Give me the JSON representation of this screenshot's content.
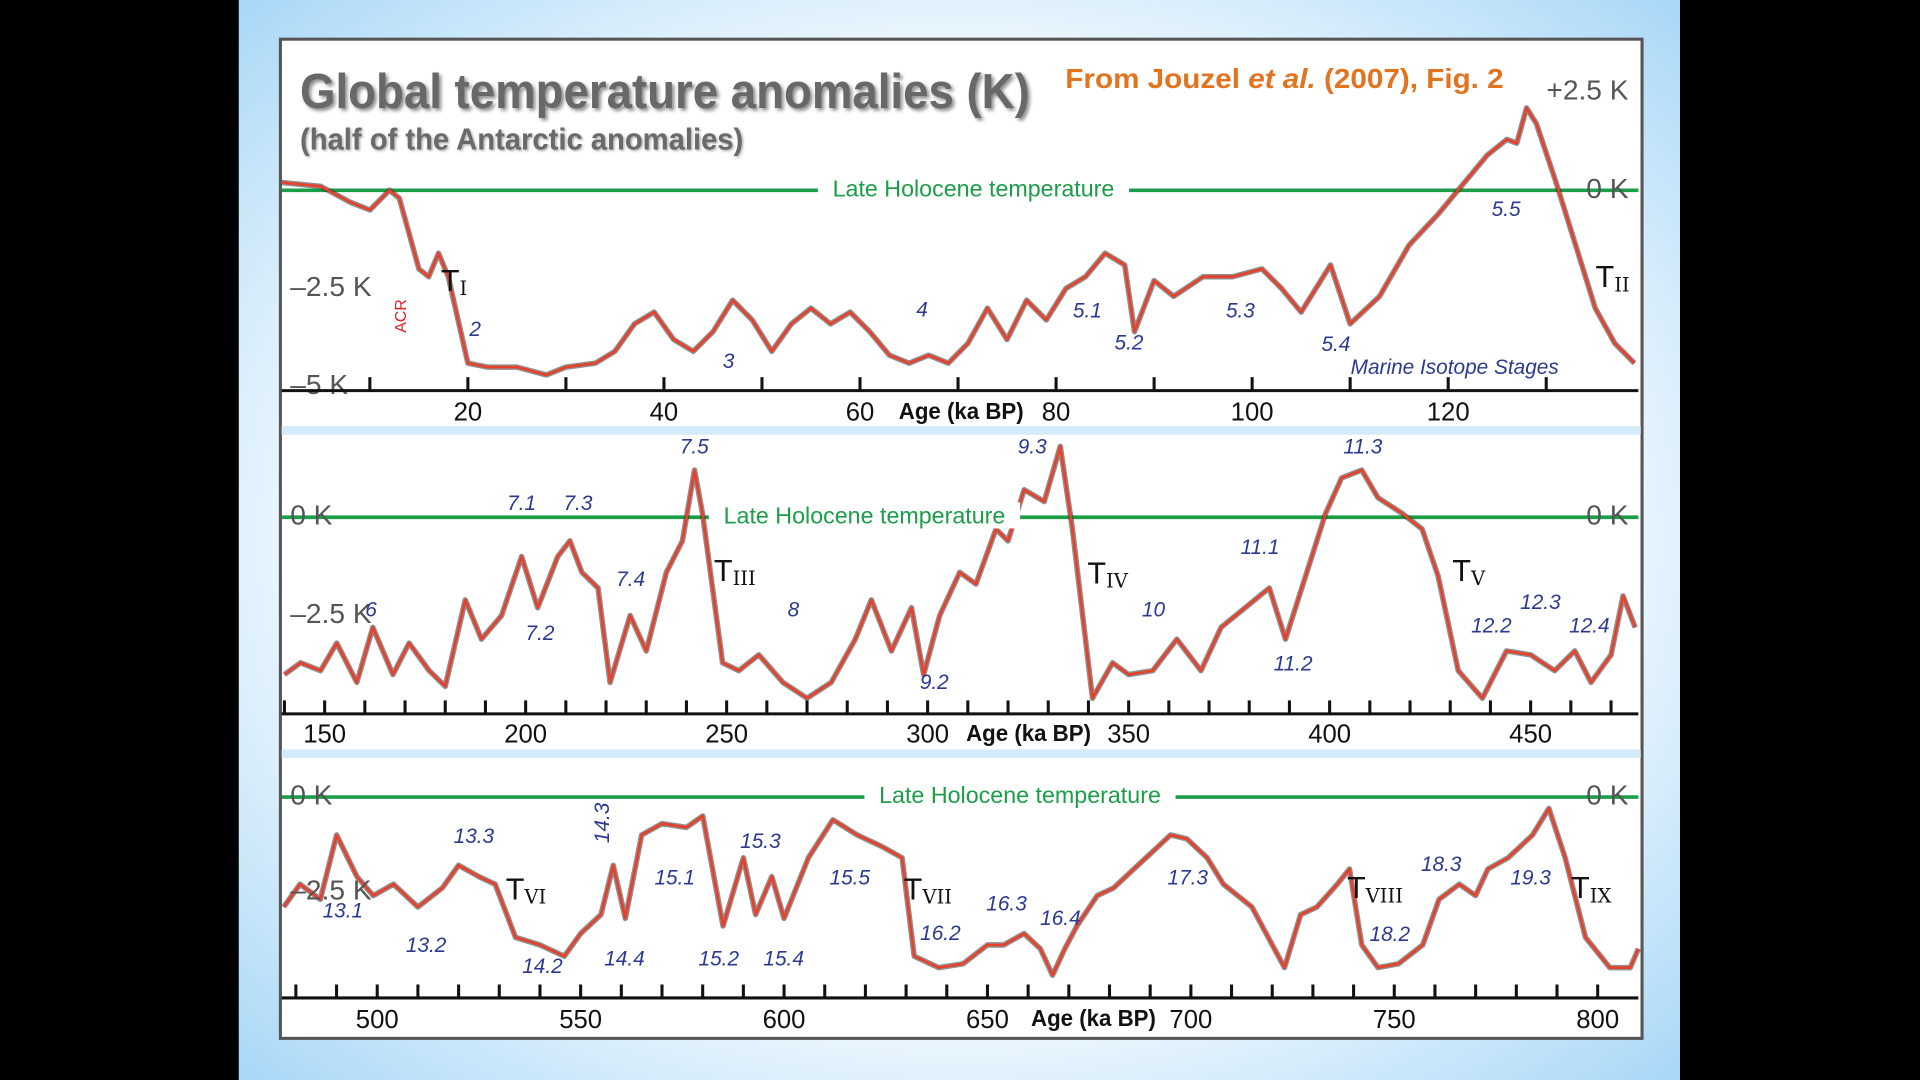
{
  "header": {
    "title": "Global temperature anomalies (K)",
    "subtitle": "(half of the Antarctic anomalies)",
    "source": {
      "before": "From Jouzel ",
      "italic": "et al.",
      "after": " (2007), Fig. 2"
    }
  },
  "chart_data": [
    {
      "type": "line",
      "x_label": "Age (ka BP)",
      "xlim": [
        1,
        139.4
      ],
      "xticks": [
        20,
        40,
        60,
        80,
        100,
        120
      ],
      "xminorticks": [
        10,
        30,
        50,
        70,
        90,
        110,
        130
      ],
      "ylim": [
        -5.1,
        3.6
      ],
      "yticks": [
        {
          "value": 2.5,
          "label": "+2.5 K"
        },
        {
          "value": 0,
          "label": "0 K"
        },
        {
          "value": -2.5,
          "label": "–2.5 K"
        },
        {
          "value": -5,
          "label": "–5 K"
        }
      ],
      "reference_line": {
        "value": 0,
        "label": "Late Holocene temperature",
        "color": "#1c9e48"
      },
      "series": [
        {
          "color": "#e8402a",
          "x": [
            1,
            5,
            8,
            10,
            12,
            13,
            14,
            15,
            16,
            17,
            18,
            19,
            20,
            22,
            25,
            28,
            30,
            33,
            35,
            37,
            39,
            41,
            43,
            45,
            47,
            49,
            51,
            53,
            55,
            57,
            59,
            61,
            63,
            65,
            67,
            69,
            71,
            73,
            75,
            77,
            79,
            81,
            83,
            85,
            87,
            88,
            90,
            92,
            95,
            98,
            101,
            103,
            105,
            107,
            108,
            110,
            113,
            116,
            119,
            121,
            124,
            126,
            127,
            128,
            129,
            131,
            133,
            135,
            137,
            139
          ],
          "values": [
            0.2,
            0.1,
            -0.3,
            -0.5,
            0,
            -0.2,
            -1.1,
            -2.0,
            -2.2,
            -1.6,
            -2.2,
            -3.3,
            -4.4,
            -4.5,
            -4.5,
            -4.7,
            -4.5,
            -4.4,
            -4.1,
            -3.4,
            -3.1,
            -3.8,
            -4.1,
            -3.6,
            -2.8,
            -3.3,
            -4.1,
            -3.4,
            -3.0,
            -3.4,
            -3.1,
            -3.6,
            -4.2,
            -4.4,
            -4.2,
            -4.4,
            -3.9,
            -3.0,
            -3.8,
            -2.8,
            -3.3,
            -2.5,
            -2.2,
            -1.6,
            -1.9,
            -3.6,
            -2.3,
            -2.7,
            -2.2,
            -2.2,
            -2.0,
            -2.5,
            -3.1,
            -2.3,
            -1.9,
            -3.4,
            -2.7,
            -1.4,
            -0.6,
            0,
            0.9,
            1.3,
            1.2,
            2.1,
            1.7,
            0.2,
            -1.4,
            -3.0,
            -3.9,
            -4.4
          ]
        }
      ],
      "stage_labels": [
        "2",
        "3",
        "4",
        "5.1",
        "5.2",
        "5.3",
        "5.4",
        "5.5"
      ],
      "terminations": [
        {
          "letter": "T",
          "sub": "I"
        },
        {
          "letter": "T",
          "sub": "II"
        }
      ],
      "acr_label": "ACR",
      "stage_caption": "Marine Isotope Stages"
    },
    {
      "type": "line",
      "x_label": "Age (ka BP)",
      "xlim": [
        139.3,
        476.8
      ],
      "xticks": [
        150,
        200,
        250,
        300,
        350,
        400,
        450
      ],
      "xminorticks": [
        140,
        160,
        170,
        180,
        190,
        210,
        220,
        230,
        240,
        260,
        270,
        280,
        290,
        310,
        320,
        330,
        340,
        360,
        370,
        380,
        390,
        410,
        420,
        430,
        440,
        460,
        470
      ],
      "ylim": [
        -5.0,
        2.1
      ],
      "yticks": [
        {
          "value": 0,
          "label": "0 K"
        },
        {
          "value": -2.5,
          "label": "–2.5 K"
        }
      ],
      "reference_line": {
        "value": 0,
        "label": "Late Holocene temperature",
        "color": "#1c9e48"
      },
      "series": [
        {
          "color": "#e8402a",
          "x": [
            140,
            144,
            149,
            153,
            158,
            162,
            167,
            171,
            176,
            180,
            185,
            189,
            194,
            199,
            203,
            208,
            211,
            214,
            218,
            221,
            226,
            230,
            235,
            239,
            242,
            244,
            249,
            253,
            258,
            264,
            270,
            276,
            282,
            286,
            291,
            296,
            299,
            303,
            308,
            312,
            317,
            320,
            324,
            329,
            333,
            336,
            341,
            346,
            350,
            356,
            362,
            368,
            373,
            379,
            385,
            389,
            394,
            399,
            403,
            408,
            412,
            418,
            423,
            427,
            432,
            438,
            444,
            450,
            456,
            461,
            465,
            470,
            473,
            476
          ],
          "values": [
            -4.0,
            -3.7,
            -3.9,
            -3.2,
            -4.2,
            -2.8,
            -4.0,
            -3.2,
            -3.9,
            -4.3,
            -2.1,
            -3.1,
            -2.5,
            -1.0,
            -2.3,
            -1.0,
            -0.6,
            -1.4,
            -1.8,
            -4.2,
            -2.5,
            -3.4,
            -1.4,
            -0.6,
            1.2,
            0.1,
            -3.7,
            -3.9,
            -3.5,
            -4.2,
            -4.6,
            -4.2,
            -3.1,
            -2.1,
            -3.4,
            -2.3,
            -4.0,
            -2.5,
            -1.4,
            -1.7,
            -0.3,
            -0.6,
            0.7,
            0.4,
            1.8,
            -0.3,
            -4.6,
            -3.7,
            -4.0,
            -3.9,
            -3.1,
            -3.9,
            -2.8,
            -2.3,
            -1.8,
            -3.1,
            -1.5,
            0.1,
            1.0,
            1.2,
            0.5,
            0.1,
            -0.3,
            -1.5,
            -3.9,
            -4.6,
            -3.4,
            -3.5,
            -3.9,
            -3.4,
            -4.2,
            -3.5,
            -2.0,
            -2.8
          ]
        }
      ],
      "stage_labels": [
        "6",
        "7.1",
        "7.3",
        "7.2",
        "7.4",
        "7.5",
        "8",
        "9.2",
        "9.3",
        "10",
        "11.1",
        "11.2",
        "11.3",
        "12.2",
        "12.3",
        "12.4"
      ],
      "terminations": [
        {
          "letter": "T",
          "sub": "III"
        },
        {
          "letter": "T",
          "sub": "IV"
        },
        {
          "letter": "T",
          "sub": "V"
        }
      ]
    },
    {
      "type": "line",
      "x_label": "Age (ka BP)",
      "xlim": [
        476.5,
        810
      ],
      "xticks": [
        500,
        550,
        600,
        650,
        700,
        750,
        800
      ],
      "xminorticks": [
        480,
        490,
        510,
        520,
        530,
        540,
        560,
        570,
        580,
        590,
        610,
        620,
        630,
        640,
        660,
        670,
        680,
        690,
        710,
        720,
        730,
        740,
        760,
        770,
        780,
        790
      ],
      "ylim": [
        -5.3,
        0.45
      ],
      "yticks": [
        {
          "value": 0,
          "label": "0 K"
        },
        {
          "value": -2.5,
          "label": "–2.5 K"
        }
      ],
      "reference_line": {
        "value": 0,
        "label": "Late Holocene temperature",
        "color": "#1c9e48"
      },
      "series": [
        {
          "color": "#e8402a",
          "x": [
            477,
            481,
            486,
            490,
            495,
            499,
            504,
            510,
            516,
            520,
            525,
            529,
            534,
            540,
            546,
            550,
            555,
            558,
            561,
            565,
            570,
            576,
            580,
            585,
            590,
            593,
            597,
            600,
            606,
            612,
            618,
            624,
            629,
            632,
            638,
            644,
            650,
            654,
            659,
            663,
            666,
            669,
            672,
            677,
            681,
            686,
            690,
            695,
            699,
            704,
            708,
            715,
            719,
            723,
            727,
            731,
            736,
            739,
            742,
            746,
            751,
            757,
            761,
            766,
            770,
            773,
            778,
            784,
            788,
            792,
            797,
            803,
            808,
            810
          ],
          "values": [
            -2.9,
            -2.3,
            -2.7,
            -1.0,
            -2.1,
            -2.6,
            -2.3,
            -2.9,
            -2.4,
            -1.8,
            -2.1,
            -2.3,
            -3.7,
            -3.9,
            -4.2,
            -3.6,
            -3.1,
            -1.8,
            -3.2,
            -1.0,
            -0.7,
            -0.8,
            -0.5,
            -3.4,
            -1.6,
            -3.1,
            -2.1,
            -3.2,
            -1.6,
            -0.6,
            -1.0,
            -1.3,
            -1.6,
            -4.2,
            -4.5,
            -4.4,
            -3.9,
            -3.9,
            -3.6,
            -4.0,
            -4.7,
            -4.0,
            -3.4,
            -2.6,
            -2.4,
            -1.9,
            -1.5,
            -1.0,
            -1.1,
            -1.6,
            -2.3,
            -2.9,
            -3.7,
            -4.5,
            -3.1,
            -2.9,
            -2.3,
            -1.9,
            -3.9,
            -4.5,
            -4.4,
            -3.9,
            -2.7,
            -2.3,
            -2.6,
            -1.9,
            -1.6,
            -1.0,
            -0.3,
            -1.6,
            -3.7,
            -4.5,
            -4.5,
            -4.0
          ]
        }
      ],
      "stage_labels": [
        "13.1",
        "13.3",
        "13.2",
        "14.2",
        "14.3",
        "14.4",
        "15.1",
        "15.3",
        "15.2",
        "15.4",
        "15.5",
        "16.2",
        "16.3",
        "16.4",
        "17.3",
        "18.2",
        "18.3",
        "19.3"
      ],
      "terminations": [
        {
          "letter": "T",
          "sub": "VI"
        },
        {
          "letter": "T",
          "sub": "VII"
        },
        {
          "letter": "T",
          "sub": "VIII"
        },
        {
          "letter": "T",
          "sub": "IX"
        }
      ]
    }
  ]
}
